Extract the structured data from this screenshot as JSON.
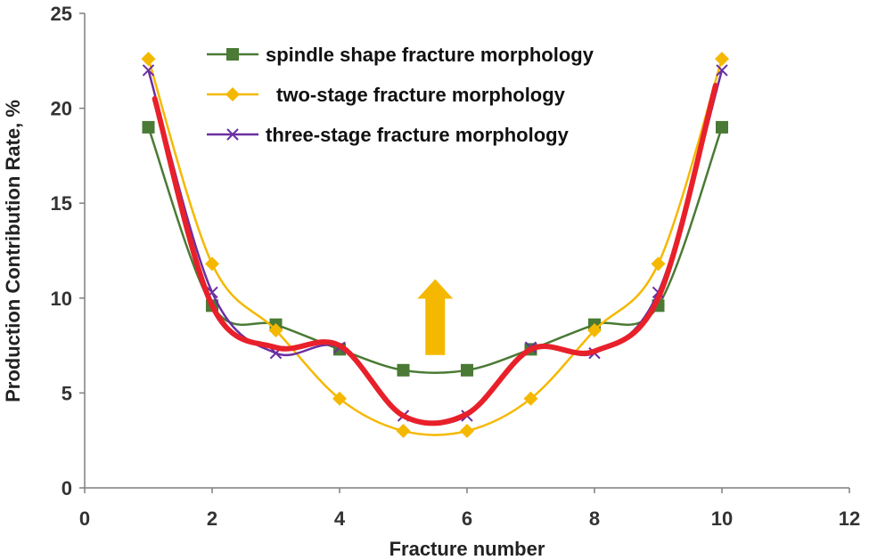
{
  "chart_data": {
    "type": "line",
    "title": "",
    "xlabel": "Fracture number",
    "ylabel": "Production Contribution Rate, %",
    "xlim": [
      0,
      12
    ],
    "ylim": [
      0,
      25
    ],
    "xticks": [
      0,
      2,
      4,
      6,
      8,
      10,
      12
    ],
    "yticks": [
      0,
      5,
      10,
      15,
      20,
      25
    ],
    "grid": false,
    "legend_position": "top-center",
    "series": [
      {
        "name": "spindle shape fracture morphology",
        "color": "#4a7a35",
        "marker": "square",
        "x": [
          1,
          2,
          3,
          4,
          5,
          6,
          7,
          8,
          9,
          10
        ],
        "y": [
          19.0,
          9.6,
          8.6,
          7.3,
          6.2,
          6.2,
          7.3,
          8.6,
          9.6,
          19.0
        ]
      },
      {
        "name": "two-stage fracture morphology",
        "color": "#f5b800",
        "marker": "diamond",
        "x": [
          1,
          2,
          3,
          4,
          5,
          6,
          7,
          8,
          9,
          10
        ],
        "y": [
          22.6,
          11.8,
          8.3,
          4.7,
          3.0,
          3.0,
          4.7,
          8.3,
          11.8,
          22.6
        ]
      },
      {
        "name": "three-stage fracture morphology",
        "color": "#6a2fa0",
        "marker": "x",
        "x": [
          1,
          2,
          3,
          4,
          5,
          6,
          7,
          8,
          9,
          10
        ],
        "y": [
          22.0,
          10.3,
          7.1,
          7.4,
          3.8,
          3.8,
          7.4,
          7.1,
          10.3,
          22.0
        ]
      }
    ],
    "overlay": {
      "color": "#e8202a",
      "x": [
        1.1,
        2,
        3,
        4,
        5,
        6,
        7,
        8,
        9,
        9.9
      ],
      "y": [
        20.5,
        9.6,
        7.4,
        7.5,
        3.8,
        3.9,
        7.3,
        7.2,
        10.0,
        21.2
      ]
    },
    "arrow": {
      "color": "#f5b800",
      "x": 5.5,
      "y_from": 7.0,
      "y_to": 11.0
    }
  }
}
